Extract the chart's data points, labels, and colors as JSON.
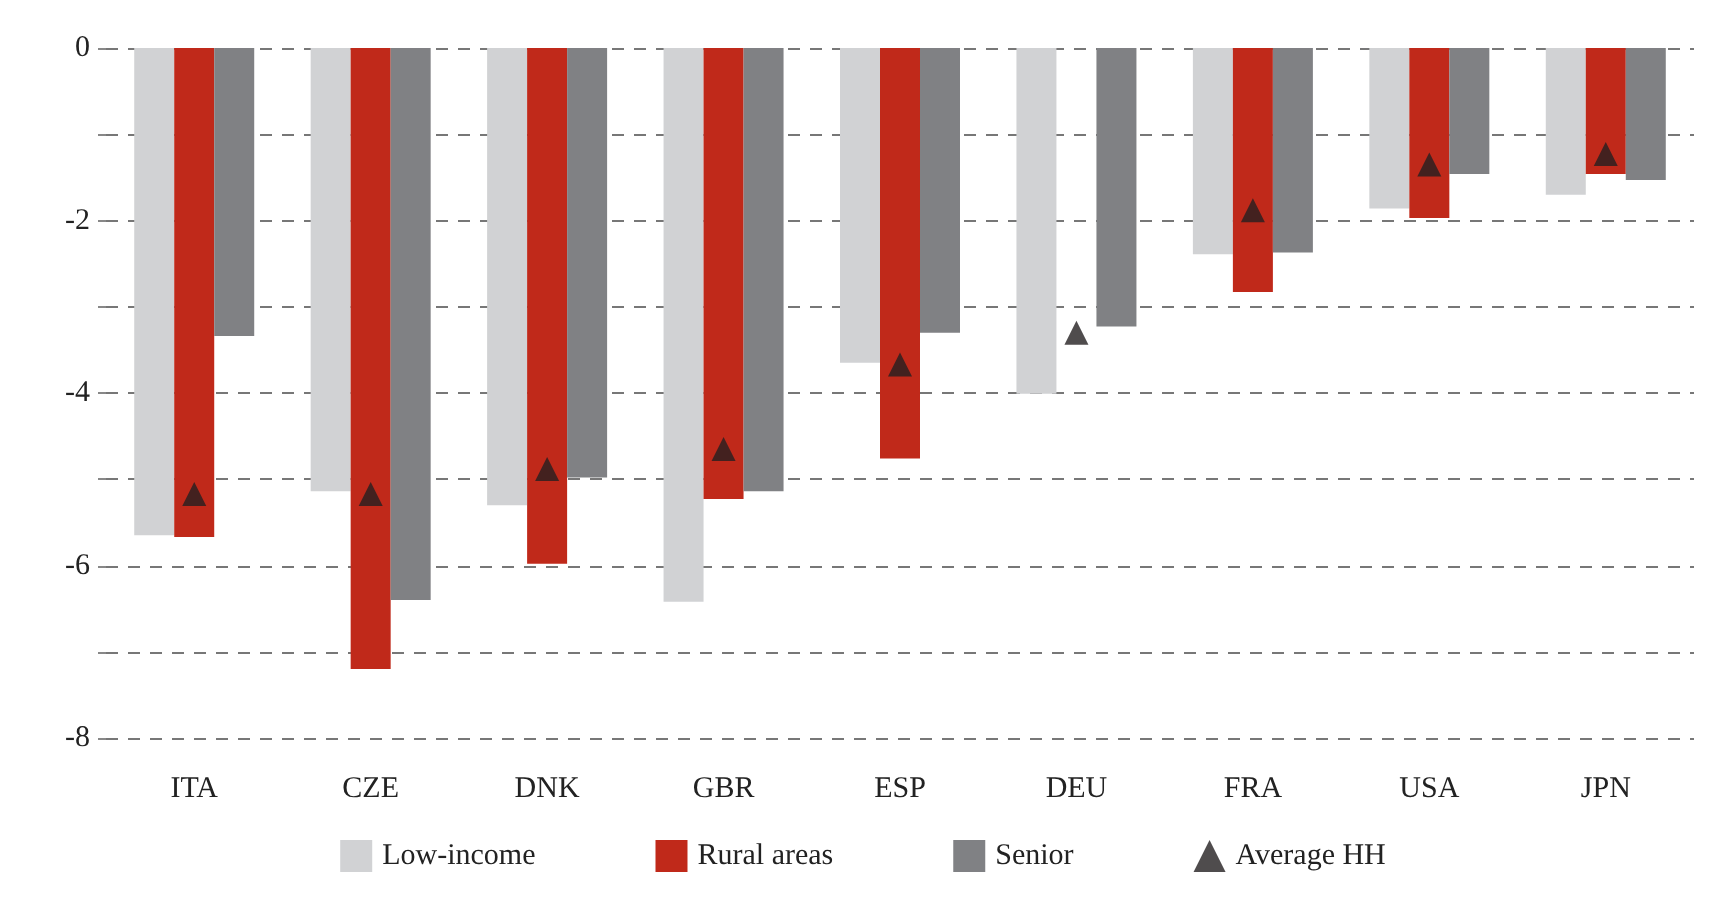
{
  "chart_data": {
    "type": "bar",
    "categories": [
      "ITA",
      "CZE",
      "DNK",
      "GBR",
      "ESP",
      "DEU",
      "FRA",
      "USA",
      "JPN"
    ],
    "series": [
      {
        "name": "Low-income",
        "color": "#d1d2d4",
        "values": [
          -5.65,
          -5.14,
          -5.3,
          -6.42,
          -3.65,
          -4.01,
          -2.39,
          -1.86,
          -1.7
        ]
      },
      {
        "name": "Rural areas",
        "color": "#c0291a",
        "values": [
          -5.67,
          -7.2,
          -5.98,
          -5.23,
          -4.76,
          null,
          -2.83,
          -1.97,
          -1.46
        ]
      },
      {
        "name": "Senior",
        "color": "#808184",
        "values": [
          -3.34,
          -6.4,
          -4.98,
          -5.14,
          -3.3,
          -3.23,
          -2.37,
          -1.46,
          -1.53
        ]
      },
      {
        "name": "Average HH",
        "type": "scatter",
        "marker": "triangle",
        "color": "#231f20",
        "x": [
          "ITA",
          "CZE",
          "DNK",
          "GBR",
          "ESP",
          "DEU",
          "FRA",
          "USA",
          "JPN"
        ],
        "values": [
          -5.17,
          -5.17,
          -4.88,
          -4.65,
          -3.67,
          -3.3,
          -1.88,
          -1.35,
          -1.23
        ]
      }
    ],
    "ylim": [
      -8,
      0
    ],
    "yticks": [
      {
        "value": -8,
        "label": "-8"
      },
      {
        "value": -7,
        "label": null
      },
      {
        "value": -6,
        "label": "-6"
      },
      {
        "value": -5,
        "label": null
      },
      {
        "value": -4,
        "label": "-4"
      },
      {
        "value": -3,
        "label": null
      },
      {
        "value": -2,
        "label": "-2"
      },
      {
        "value": -1,
        "label": null
      },
      0
    ],
    "grid": "y",
    "legend": "bottom"
  }
}
